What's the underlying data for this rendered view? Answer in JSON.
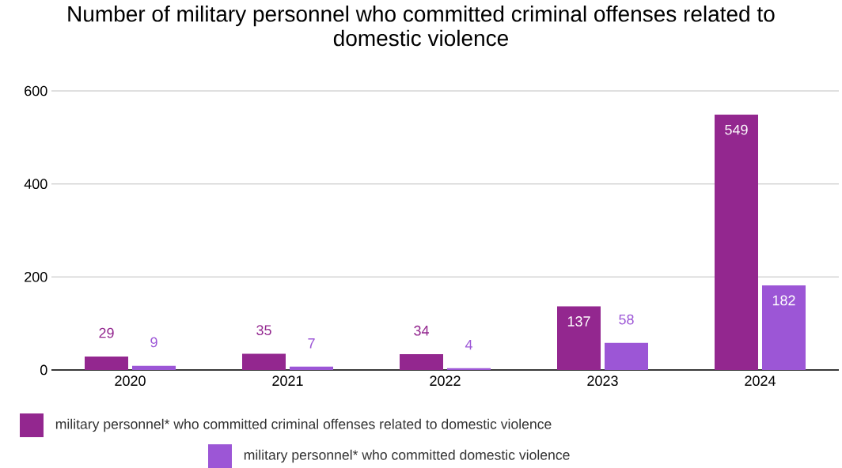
{
  "chart_data": {
    "type": "bar",
    "title": "Number of military personnel who committed criminal offenses related to domestic violence",
    "categories": [
      "2020",
      "2021",
      "2022",
      "2023",
      "2024"
    ],
    "series": [
      {
        "name": "military personnel* who committed criminal offenses related to domestic violence",
        "color": "#93278f",
        "values": [
          29,
          35,
          34,
          137,
          549
        ]
      },
      {
        "name": "military personnel* who committed domestic violence",
        "color": "#9c56d6",
        "values": [
          9,
          7,
          4,
          58,
          182
        ]
      }
    ],
    "ylim": [
      0,
      600
    ],
    "yticks": [
      0,
      200,
      400,
      600
    ],
    "grid": "y",
    "legend": "bottom",
    "data_labels": true
  }
}
